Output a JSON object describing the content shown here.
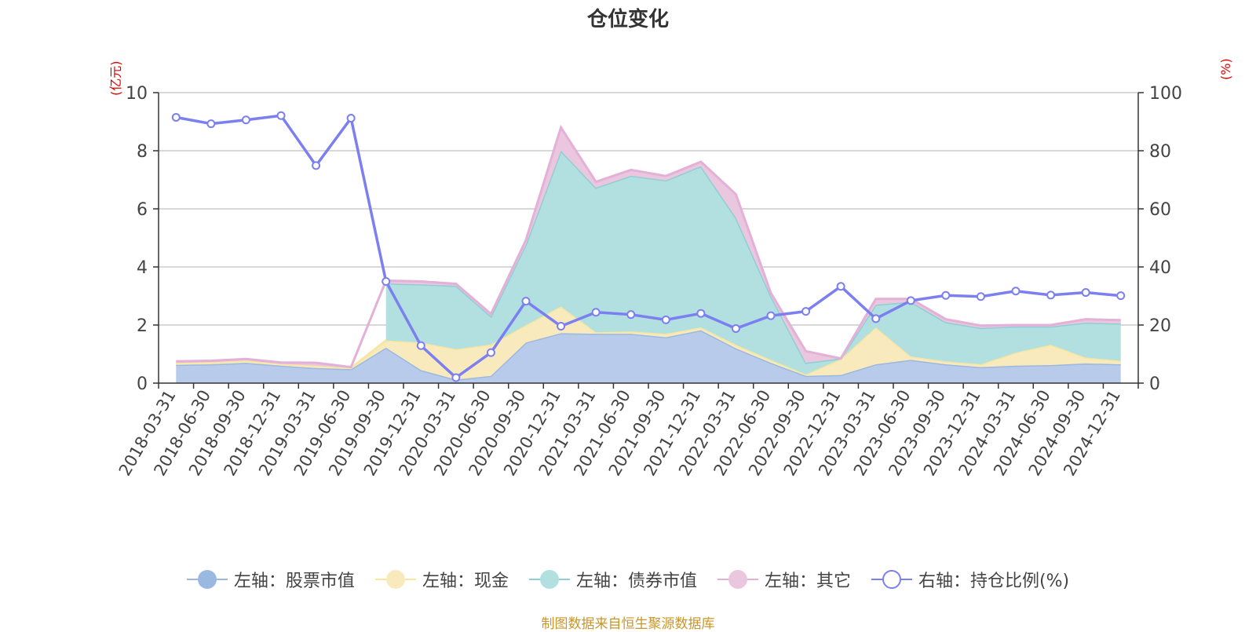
{
  "chart_data": {
    "type": "area",
    "title": "仓位变化",
    "left_axis_unit": "(亿元)",
    "right_axis_unit": "(%)",
    "left_ylim": [
      0,
      10
    ],
    "right_ylim": [
      0,
      100
    ],
    "left_ticks": [
      "0",
      "2",
      "4",
      "6",
      "8",
      "10"
    ],
    "right_ticks": [
      "0",
      "20",
      "40",
      "60",
      "80",
      "100"
    ],
    "grid": true,
    "legend_position": "bottom",
    "categories": [
      "2018-03-31",
      "2018-06-30",
      "2018-09-30",
      "2018-12-31",
      "2019-03-31",
      "2019-06-30",
      "2019-09-30",
      "2019-12-31",
      "2020-03-31",
      "2020-06-30",
      "2020-09-30",
      "2020-12-31",
      "2021-03-31",
      "2021-06-30",
      "2021-09-30",
      "2021-12-31",
      "2022-03-31",
      "2022-06-30",
      "2022-09-30",
      "2022-12-31",
      "2023-03-31",
      "2023-06-30",
      "2023-09-30",
      "2023-12-31",
      "2024-03-31",
      "2024-06-30",
      "2024-09-30",
      "2024-12-31"
    ],
    "series": [
      {
        "name": "左轴：股票市值",
        "axis": "left",
        "stack": true,
        "color": "#9bb8e0",
        "fill": "#b8cbea",
        "values": [
          0.63,
          0.65,
          0.7,
          0.6,
          0.52,
          0.48,
          1.22,
          0.45,
          0.12,
          0.25,
          1.4,
          1.72,
          1.7,
          1.7,
          1.58,
          1.82,
          1.2,
          0.7,
          0.25,
          0.28,
          0.65,
          0.8,
          0.65,
          0.55,
          0.6,
          0.62,
          0.68,
          0.65
        ]
      },
      {
        "name": "左轴：现金",
        "axis": "left",
        "stack": true,
        "color": "#f6e6a0",
        "fill": "#f9eabd",
        "values": [
          0.07,
          0.07,
          0.08,
          0.06,
          0.08,
          0.04,
          0.25,
          0.95,
          1.05,
          1.08,
          0.6,
          0.92,
          0.05,
          0.08,
          0.12,
          0.1,
          0.12,
          0.1,
          0.05,
          0.55,
          1.27,
          0.12,
          0.1,
          0.1,
          0.45,
          0.7,
          0.2,
          0.12
        ]
      },
      {
        "name": "左轴：债券市值",
        "axis": "left",
        "stack": true,
        "color": "#8fcfd4",
        "fill": "#b2e0e0",
        "values": [
          0,
          0,
          0,
          0,
          0,
          0,
          1.96,
          2.0,
          2.18,
          0.97,
          2.78,
          5.36,
          4.98,
          5.36,
          5.28,
          5.55,
          4.38,
          2.2,
          0.4,
          0.02,
          0.78,
          1.88,
          1.35,
          1.25,
          0.9,
          0.63,
          1.2,
          1.28
        ]
      },
      {
        "name": "左轴：其它",
        "axis": "left",
        "stack": true,
        "color": "#e3b0d8",
        "fill": "#ebc7df",
        "values": [
          0.05,
          0.05,
          0.05,
          0.05,
          0.1,
          0.03,
          0.1,
          0.1,
          0.07,
          0.08,
          0.15,
          0.8,
          0.2,
          0.2,
          0.15,
          0.15,
          0.8,
          0.1,
          0.4,
          0,
          0.2,
          0.1,
          0.1,
          0.08,
          0.05,
          0.05,
          0.12,
          0.12
        ]
      },
      {
        "name": "右轴：持仓比例(%)",
        "axis": "right",
        "stack": false,
        "color": "#7b7ff0",
        "values": [
          91.5,
          89.3,
          90.6,
          92.1,
          74.9,
          91.2,
          35.0,
          12.9,
          1.9,
          10.5,
          28.2,
          19.6,
          24.4,
          23.6,
          21.8,
          24.0,
          18.8,
          23.2,
          24.7,
          33.3,
          22.2,
          28.4,
          30.2,
          29.8,
          31.7,
          30.3,
          31.2,
          30.1
        ]
      }
    ]
  },
  "source_note": "制图数据来自恒生聚源数据库"
}
